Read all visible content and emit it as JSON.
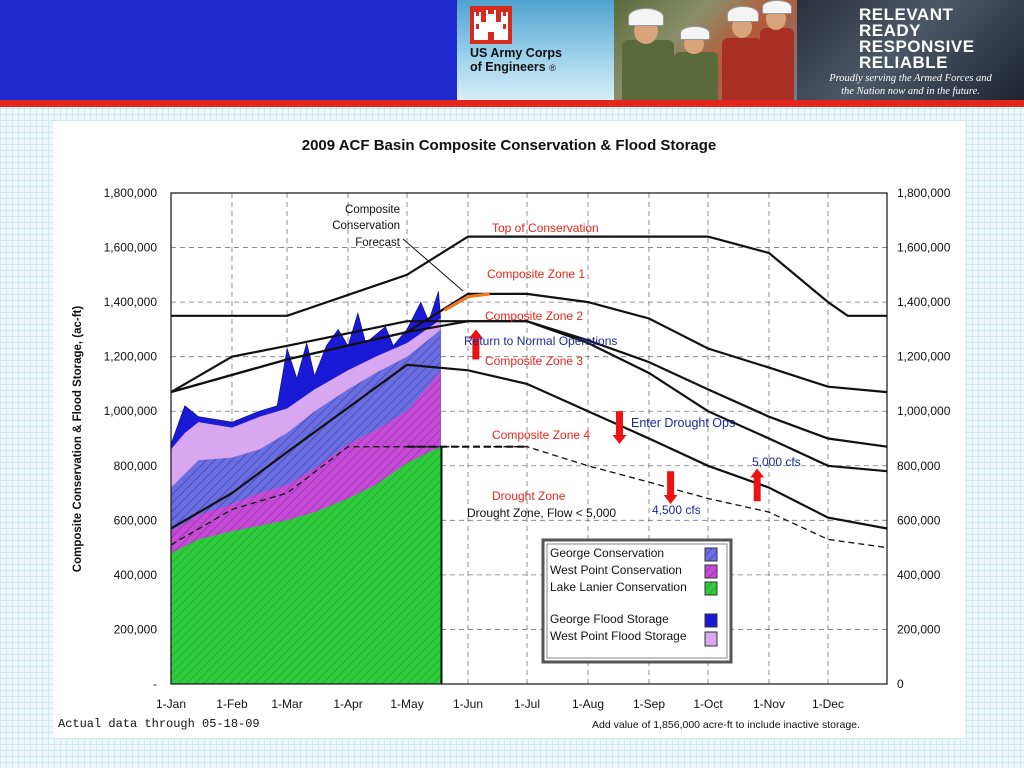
{
  "header": {
    "org_line1": "US Army Corps",
    "org_line2": "of Engineers",
    "registered": "®",
    "motto": [
      "RELEVANT",
      "READY",
      "RESPONSIVE",
      "RELIABLE"
    ],
    "motto_sub_line1": "Proudly serving the Armed Forces and",
    "motto_sub_line2": "the Nation now and in the future.",
    "logo_icon": "castle-icon",
    "colors": {
      "banner": "#1f2bd1",
      "stripe": "#e2261b"
    }
  },
  "chart_data": {
    "type": "area",
    "title": "2009 ACF Basin Composite Conservation & Flood Storage",
    "ylabel": "Composite Conservation & Flood Storage, (ac-ft)",
    "xlabel": "",
    "x_range": [
      "1-Jan",
      "31-Dec"
    ],
    "ylim": [
      0,
      1800000
    ],
    "grid": true,
    "categories": [
      "1-Jan",
      "1-Feb",
      "1-Mar",
      "1-Apr",
      "1-May",
      "1-Jun",
      "1-Jul",
      "1-Aug",
      "1-Sep",
      "1-Oct",
      "1-Nov",
      "1-Dec"
    ],
    "yticks_left": [
      "1,800,000",
      "1,600,000",
      "1,400,000",
      "1,200,000",
      "1,000,000",
      "800,000",
      "600,000",
      "400,000",
      "200,000",
      "-"
    ],
    "yticks_right": [
      "1,800,000",
      "1,600,000",
      "1,400,000",
      "1,200,000",
      "1,000,000",
      "800,000",
      "600,000",
      "400,000",
      "200,000",
      "0"
    ],
    "rule_curves": [
      {
        "name": "Top of Conservation",
        "color": "#111111",
        "points": [
          [
            1,
            1350000
          ],
          [
            60,
            1350000
          ],
          [
            121,
            1500000
          ],
          [
            152,
            1640000
          ],
          [
            274,
            1640000
          ],
          [
            305,
            1580000
          ],
          [
            335,
            1400000
          ],
          [
            345,
            1350000
          ],
          [
            365,
            1350000
          ]
        ]
      },
      {
        "name": "Composite Zone 1",
        "color": "#111111",
        "points": [
          [
            1,
            1070000
          ],
          [
            60,
            1190000
          ],
          [
            121,
            1290000
          ],
          [
            152,
            1330000
          ],
          [
            182,
            1330000
          ],
          [
            213,
            1250000
          ],
          [
            244,
            1140000
          ],
          [
            274,
            1000000
          ],
          [
            305,
            900000
          ],
          [
            335,
            800000
          ],
          [
            365,
            780000
          ]
        ]
      },
      {
        "name": "Composite Zone 2",
        "color": "#111111",
        "points": [
          [
            1,
            1070000
          ],
          [
            60,
            1190000
          ],
          [
            121,
            1290000
          ],
          [
            152,
            1430000
          ],
          [
            182,
            1430000
          ],
          [
            213,
            1400000
          ],
          [
            244,
            1340000
          ],
          [
            274,
            1230000
          ],
          [
            305,
            1160000
          ],
          [
            335,
            1090000
          ],
          [
            365,
            1070000
          ]
        ]
      },
      {
        "name": "Composite Zone 3",
        "color": "#111111",
        "points": [
          [
            1,
            1070000
          ],
          [
            32,
            1200000
          ],
          [
            60,
            1240000
          ],
          [
            121,
            1330000
          ],
          [
            152,
            1330000
          ],
          [
            182,
            1330000
          ],
          [
            213,
            1260000
          ],
          [
            244,
            1180000
          ],
          [
            274,
            1080000
          ],
          [
            305,
            980000
          ],
          [
            335,
            900000
          ],
          [
            365,
            870000
          ]
        ]
      },
      {
        "name": "Composite Zone 4",
        "color": "#111111",
        "points": [
          [
            1,
            570000
          ],
          [
            32,
            700000
          ],
          [
            60,
            850000
          ],
          [
            121,
            1170000
          ],
          [
            152,
            1150000
          ],
          [
            182,
            1100000
          ],
          [
            213,
            1000000
          ],
          [
            244,
            900000
          ],
          [
            274,
            800000
          ],
          [
            305,
            720000
          ],
          [
            335,
            610000
          ],
          [
            365,
            570000
          ]
        ]
      },
      {
        "name": "Drought Zone, Flow < 5,000",
        "color": "#111111",
        "dashed": true,
        "points": [
          [
            1,
            510000
          ],
          [
            32,
            640000
          ],
          [
            60,
            700000
          ],
          [
            91,
            870000
          ],
          [
            121,
            870000
          ],
          [
            152,
            870000
          ],
          [
            182,
            870000
          ],
          [
            213,
            800000
          ],
          [
            244,
            740000
          ],
          [
            274,
            680000
          ],
          [
            305,
            630000
          ],
          [
            335,
            530000
          ],
          [
            365,
            500000
          ]
        ]
      }
    ],
    "series": [
      {
        "name": "Lake Lanier Conservation",
        "color": "#2ecc3c",
        "values": [
          [
            1,
            480000
          ],
          [
            15,
            530000
          ],
          [
            32,
            560000
          ],
          [
            46,
            580000
          ],
          [
            60,
            600000
          ],
          [
            74,
            630000
          ],
          [
            91,
            680000
          ],
          [
            105,
            730000
          ],
          [
            121,
            810000
          ],
          [
            135,
            860000
          ],
          [
            138,
            870000
          ]
        ]
      },
      {
        "name": "West Point Conservation",
        "color": "#c54bd6",
        "values": [
          [
            1,
            560000
          ],
          [
            15,
            620000
          ],
          [
            32,
            660000
          ],
          [
            46,
            700000
          ],
          [
            60,
            730000
          ],
          [
            74,
            790000
          ],
          [
            91,
            880000
          ],
          [
            105,
            930000
          ],
          [
            121,
            1000000
          ],
          [
            135,
            1120000
          ],
          [
            138,
            1150000
          ]
        ]
      },
      {
        "name": "George Conservation",
        "color": "#6a6ee0",
        "values": [
          [
            1,
            720000
          ],
          [
            15,
            820000
          ],
          [
            32,
            830000
          ],
          [
            46,
            860000
          ],
          [
            60,
            920000
          ],
          [
            74,
            1000000
          ],
          [
            91,
            1080000
          ],
          [
            105,
            1140000
          ],
          [
            121,
            1200000
          ],
          [
            135,
            1280000
          ],
          [
            138,
            1300000
          ]
        ]
      },
      {
        "name": "West Point Flood Storage",
        "color": "#d9a6f0",
        "values": [
          [
            1,
            860000
          ],
          [
            8,
            920000
          ],
          [
            15,
            960000
          ],
          [
            32,
            940000
          ],
          [
            46,
            980000
          ],
          [
            60,
            1010000
          ],
          [
            74,
            1080000
          ],
          [
            91,
            1150000
          ],
          [
            105,
            1200000
          ],
          [
            121,
            1250000
          ],
          [
            135,
            1320000
          ],
          [
            138,
            1340000
          ]
        ]
      },
      {
        "name": "George Flood Storage",
        "color": "#1a1ad6",
        "values": [
          [
            1,
            880000
          ],
          [
            8,
            1020000
          ],
          [
            15,
            980000
          ],
          [
            32,
            960000
          ],
          [
            46,
            1000000
          ],
          [
            55,
            1020000
          ],
          [
            60,
            1230000
          ],
          [
            65,
            1120000
          ],
          [
            70,
            1250000
          ],
          [
            74,
            1130000
          ],
          [
            80,
            1240000
          ],
          [
            86,
            1300000
          ],
          [
            91,
            1240000
          ],
          [
            96,
            1360000
          ],
          [
            100,
            1250000
          ],
          [
            105,
            1280000
          ],
          [
            110,
            1310000
          ],
          [
            114,
            1240000
          ],
          [
            121,
            1300000
          ],
          [
            128,
            1400000
          ],
          [
            132,
            1330000
          ],
          [
            137,
            1440000
          ],
          [
            138,
            1350000
          ]
        ]
      }
    ],
    "forecast": {
      "name": "Composite Conservation Forecast",
      "color": "#ee7722",
      "points": [
        [
          140,
          1370000
        ],
        [
          152,
          1420000
        ],
        [
          163,
          1430000
        ]
      ]
    },
    "legend": {
      "position": "lower-right",
      "items": [
        "George Conservation",
        "West Point Conservation",
        "Lake Lanier Conservation",
        "George Flood Storage",
        "West Point Flood Storage"
      ]
    },
    "annotations": {
      "forecast_line1": "Composite",
      "forecast_line2": "Conservation",
      "forecast_line3": "Forecast",
      "top_of_conservation": "Top of Conservation",
      "zone1": "Composite Zone 1",
      "zone2": "Composite Zone 2",
      "zone3": "Composite Zone 3",
      "zone4": "Composite Zone 4",
      "drought_zone": "Drought Zone",
      "drought_flow": "Drought Zone, Flow < 5,000",
      "return_normal": "Return to Normal Operations",
      "enter_drought": "Enter Drought Ops",
      "cfs_5000": "5,000 cfs",
      "cfs_4500": "4,500 cfs"
    },
    "arrows": [
      {
        "label": "Return to Normal Operations",
        "direction": "up",
        "x": 156,
        "y_from": 1190000,
        "y_to": 1300000
      },
      {
        "label": "Enter Drought Ops",
        "direction": "down",
        "x": 229,
        "y_from": 1000000,
        "y_to": 880000
      },
      {
        "label": "4,500 cfs",
        "direction": "down",
        "x": 255,
        "y_from": 780000,
        "y_to": 660000
      },
      {
        "label": "5,000 cfs",
        "direction": "up",
        "x": 299,
        "y_from": 670000,
        "y_to": 790000
      }
    ],
    "colors": {
      "zone_label": "#e8241a",
      "ops_label": "#1b2a9a",
      "arrow": "#ee1111"
    }
  },
  "footnote": {
    "left": "Actual data through 05-18-09",
    "right": "Add value of 1,856,000 acre-ft to include inactive storage."
  }
}
